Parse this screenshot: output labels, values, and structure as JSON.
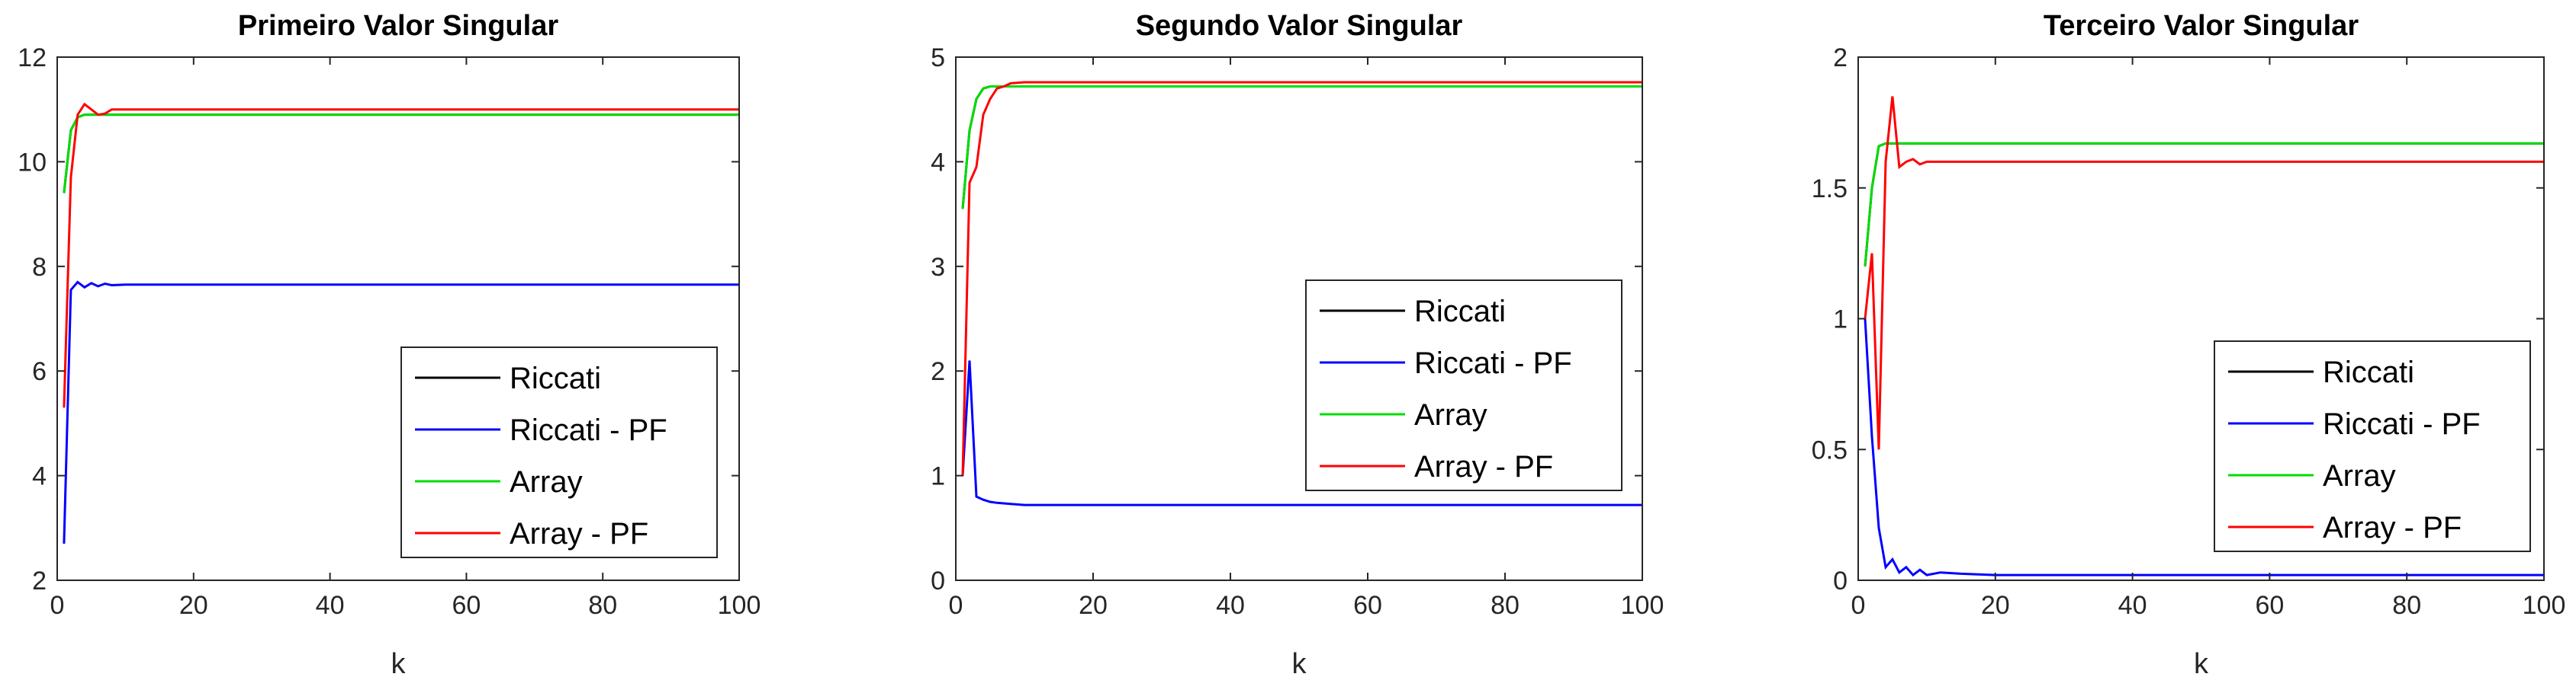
{
  "chart_data": [
    {
      "type": "line",
      "title": "Primeiro Valor Singular",
      "xlabel": "k",
      "ylabel": "",
      "xlim": [
        0,
        100
      ],
      "ylim": [
        2,
        12
      ],
      "xticks": [
        0,
        20,
        40,
        60,
        80,
        100
      ],
      "yticks": [
        2,
        4,
        6,
        8,
        10,
        12
      ],
      "grid": false,
      "legend_position": "lower-right",
      "series": [
        {
          "name": "Riccati",
          "color": "#000000",
          "x": [
            1,
            2,
            3,
            4,
            5,
            6,
            7,
            8,
            10,
            15,
            20,
            40,
            60,
            80,
            100
          ],
          "y": [
            9.4,
            10.6,
            10.85,
            10.9,
            10.9,
            10.9,
            10.9,
            10.9,
            10.9,
            10.9,
            10.9,
            10.9,
            10.9,
            10.9,
            10.9
          ]
        },
        {
          "name": "Riccati - PF",
          "color": "#0000ff",
          "x": [
            1,
            2,
            3,
            4,
            5,
            6,
            7,
            8,
            10,
            15,
            20,
            40,
            60,
            80,
            100
          ],
          "y": [
            2.7,
            7.55,
            7.7,
            7.6,
            7.68,
            7.62,
            7.67,
            7.64,
            7.65,
            7.65,
            7.65,
            7.65,
            7.65,
            7.65,
            7.65
          ]
        },
        {
          "name": "Array",
          "color": "#00dd00",
          "x": [
            1,
            2,
            3,
            4,
            5,
            6,
            7,
            8,
            10,
            15,
            20,
            40,
            60,
            80,
            100
          ],
          "y": [
            9.4,
            10.6,
            10.85,
            10.9,
            10.9,
            10.9,
            10.9,
            10.9,
            10.9,
            10.9,
            10.9,
            10.9,
            10.9,
            10.9,
            10.9
          ]
        },
        {
          "name": "Array - PF",
          "color": "#ff0000",
          "x": [
            1,
            2,
            3,
            4,
            5,
            6,
            7,
            8,
            10,
            15,
            20,
            40,
            60,
            80,
            100
          ],
          "y": [
            5.3,
            9.7,
            10.9,
            11.1,
            11.0,
            10.9,
            10.92,
            11.0,
            11.0,
            11.0,
            11.0,
            11.0,
            11.0,
            11.0,
            11.0
          ]
        }
      ]
    },
    {
      "type": "line",
      "title": "Segundo Valor Singular",
      "xlabel": "k",
      "ylabel": "",
      "xlim": [
        0,
        100
      ],
      "ylim": [
        0,
        5
      ],
      "xticks": [
        0,
        20,
        40,
        60,
        80,
        100
      ],
      "yticks": [
        0,
        1,
        2,
        3,
        4,
        5
      ],
      "grid": false,
      "legend_position": "middle-right",
      "series": [
        {
          "name": "Riccati",
          "color": "#000000",
          "x": [
            1,
            2,
            3,
            4,
            5,
            6,
            8,
            10,
            15,
            20,
            40,
            60,
            80,
            100
          ],
          "y": [
            3.55,
            4.3,
            4.6,
            4.7,
            4.72,
            4.72,
            4.72,
            4.72,
            4.72,
            4.72,
            4.72,
            4.72,
            4.72,
            4.72
          ]
        },
        {
          "name": "Riccati - PF",
          "color": "#0000ff",
          "x": [
            1,
            2,
            3,
            4,
            5,
            6,
            8,
            10,
            15,
            20,
            40,
            60,
            80,
            100
          ],
          "y": [
            1.0,
            2.1,
            0.8,
            0.77,
            0.75,
            0.74,
            0.73,
            0.72,
            0.72,
            0.72,
            0.72,
            0.72,
            0.72,
            0.72
          ]
        },
        {
          "name": "Array",
          "color": "#00dd00",
          "x": [
            1,
            2,
            3,
            4,
            5,
            6,
            8,
            10,
            15,
            20,
            40,
            60,
            80,
            100
          ],
          "y": [
            3.55,
            4.3,
            4.6,
            4.7,
            4.72,
            4.72,
            4.72,
            4.72,
            4.72,
            4.72,
            4.72,
            4.72,
            4.72,
            4.72
          ]
        },
        {
          "name": "Array - PF",
          "color": "#ff0000",
          "x": [
            1,
            2,
            3,
            4,
            5,
            6,
            7,
            8,
            10,
            15,
            20,
            40,
            60,
            80,
            100
          ],
          "y": [
            1.0,
            3.8,
            3.95,
            4.45,
            4.6,
            4.7,
            4.72,
            4.75,
            4.76,
            4.76,
            4.76,
            4.76,
            4.76,
            4.76,
            4.76
          ]
        }
      ]
    },
    {
      "type": "line",
      "title": "Terceiro Valor Singular",
      "xlabel": "k",
      "ylabel": "",
      "xlim": [
        0,
        100
      ],
      "ylim": [
        0,
        2
      ],
      "xticks": [
        0,
        20,
        40,
        60,
        80,
        100
      ],
      "yticks": [
        0,
        0.5,
        1,
        1.5,
        2
      ],
      "grid": false,
      "legend_position": "lower-right",
      "series": [
        {
          "name": "Riccati",
          "color": "#000000",
          "x": [
            1,
            2,
            3,
            4,
            5,
            10,
            20,
            40,
            60,
            80,
            100
          ],
          "y": [
            1.2,
            1.5,
            1.66,
            1.67,
            1.67,
            1.67,
            1.67,
            1.67,
            1.67,
            1.67,
            1.67
          ]
        },
        {
          "name": "Riccati - PF",
          "color": "#0000ff",
          "x": [
            1,
            2,
            3,
            4,
            5,
            6,
            7,
            8,
            9,
            10,
            12,
            15,
            20,
            40,
            60,
            80,
            100
          ],
          "y": [
            1.0,
            0.55,
            0.2,
            0.05,
            0.08,
            0.03,
            0.05,
            0.02,
            0.04,
            0.02,
            0.03,
            0.025,
            0.02,
            0.02,
            0.02,
            0.02,
            0.02
          ]
        },
        {
          "name": "Array",
          "color": "#00dd00",
          "x": [
            1,
            2,
            3,
            4,
            5,
            10,
            20,
            40,
            60,
            80,
            100
          ],
          "y": [
            1.2,
            1.5,
            1.66,
            1.67,
            1.67,
            1.67,
            1.67,
            1.67,
            1.67,
            1.67,
            1.67
          ]
        },
        {
          "name": "Array - PF",
          "color": "#ff0000",
          "x": [
            1,
            2,
            3,
            4,
            5,
            6,
            7,
            8,
            9,
            10,
            12,
            15,
            20,
            40,
            60,
            80,
            100
          ],
          "y": [
            1.0,
            1.25,
            0.5,
            1.6,
            1.85,
            1.58,
            1.6,
            1.61,
            1.59,
            1.6,
            1.6,
            1.6,
            1.6,
            1.6,
            1.6,
            1.6,
            1.6
          ]
        }
      ]
    }
  ]
}
